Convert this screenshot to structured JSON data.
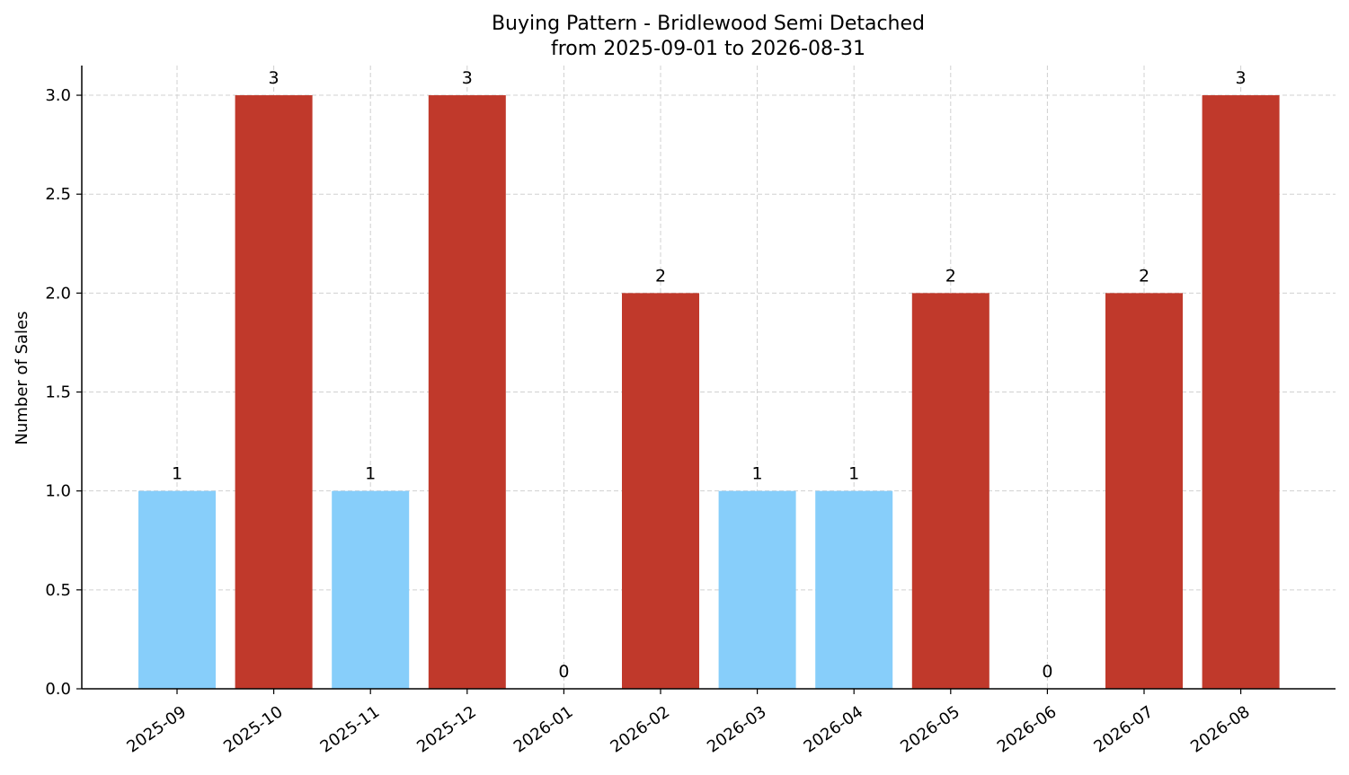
{
  "chart_data": {
    "type": "bar",
    "title": "Buying Pattern - Bridlewood Semi Detached",
    "subtitle": "from 2025-09-01 to 2026-08-31",
    "xlabel": "",
    "ylabel": "Number of Sales",
    "categories": [
      "2025-09",
      "2025-10",
      "2025-11",
      "2025-12",
      "2026-01",
      "2026-02",
      "2026-03",
      "2026-04",
      "2026-05",
      "2026-06",
      "2026-07",
      "2026-08"
    ],
    "values": [
      1,
      3,
      1,
      3,
      0,
      2,
      1,
      1,
      2,
      0,
      2,
      3
    ],
    "bar_colors": [
      "#87CEFA",
      "#C0392B",
      "#87CEFA",
      "#C0392B",
      "#87CEFA",
      "#C0392B",
      "#87CEFA",
      "#87CEFA",
      "#C0392B",
      "#87CEFA",
      "#C0392B",
      "#C0392B"
    ],
    "data_labels": [
      "1",
      "3",
      "1",
      "3",
      "0",
      "2",
      "1",
      "1",
      "2",
      "0",
      "2",
      "3"
    ],
    "yticks": [
      0.0,
      0.5,
      1.0,
      1.5,
      2.0,
      2.5,
      3.0
    ],
    "ytick_labels": [
      "0.0",
      "0.5",
      "1.0",
      "1.5",
      "2.0",
      "2.5",
      "3.0"
    ],
    "ylim": [
      0,
      3.15
    ],
    "grid": true
  }
}
